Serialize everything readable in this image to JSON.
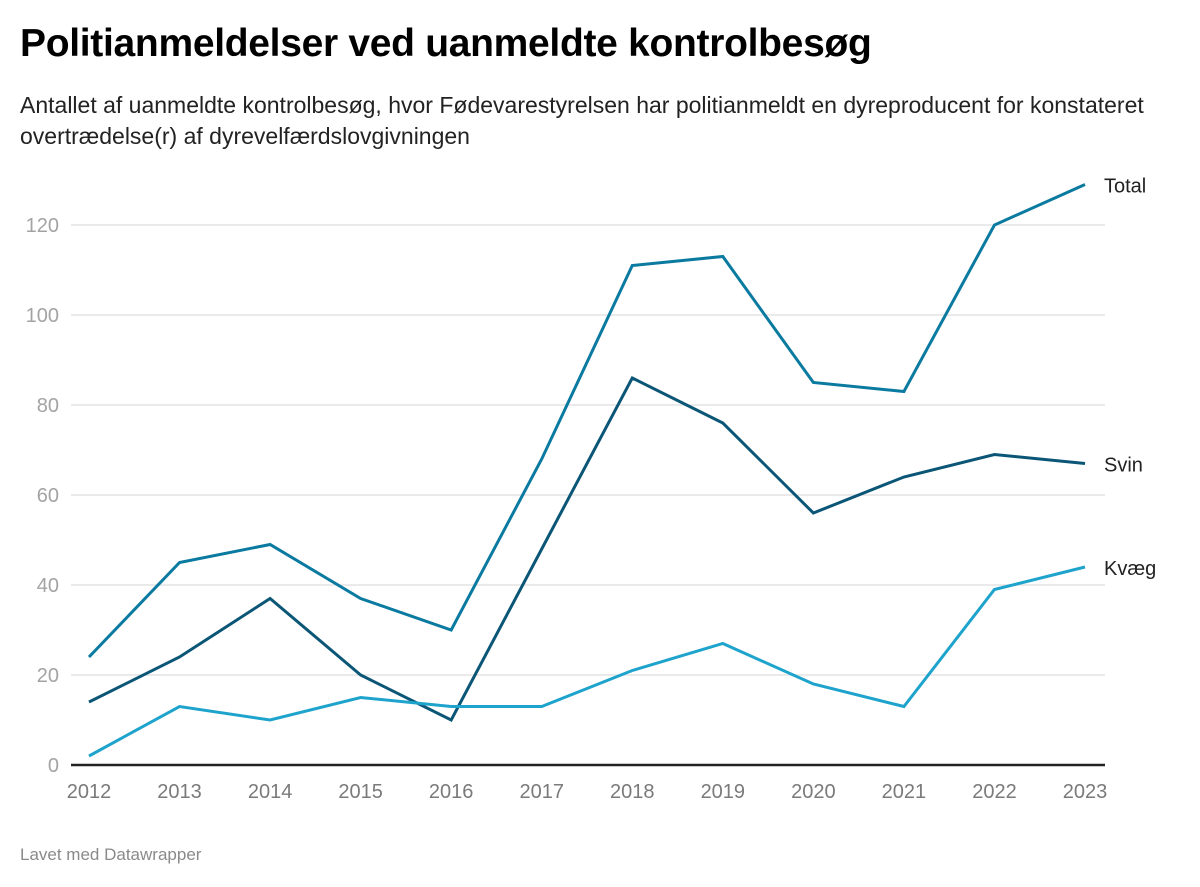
{
  "header": {
    "title": "Politianmeldelser ved uanmeldte kontrolbesøg",
    "subtitle": "Antallet af uanmeldte kontrolbesøg, hvor Fødevarestyrelsen har politianmeldt en dyreproducent for konstateret overtrædelse(r) af dyrevelfærdslovgivningen"
  },
  "footer": {
    "credit": "Lavet med Datawrapper"
  },
  "chart_data": {
    "type": "line",
    "title": "Politianmeldelser ved uanmeldte kontrolbesøg",
    "subtitle": "Antallet af uanmeldte kontrolbesøg, hvor Fødevarestyrelsen har politianmeldt en dyreproducent for konstateret overtrædelse(r) af dyrevelfærdslovgivningen",
    "xlabel": "",
    "ylabel": "",
    "x": [
      "2012",
      "2013",
      "2014",
      "2015",
      "2016",
      "2017",
      "2018",
      "2019",
      "2020",
      "2021",
      "2022",
      "2023"
    ],
    "ylim": [
      0,
      130
    ],
    "yticks": [
      0,
      20,
      40,
      60,
      80,
      100,
      120
    ],
    "grid": true,
    "legend": "inline-right",
    "series": [
      {
        "name": "Total",
        "color": "#0a7aa0",
        "values": [
          24,
          45,
          49,
          37,
          30,
          68,
          111,
          113,
          85,
          83,
          120,
          129
        ]
      },
      {
        "name": "Svin",
        "color": "#0b5676",
        "values": [
          14,
          24,
          37,
          20,
          10,
          48,
          86,
          76,
          56,
          64,
          69,
          67
        ]
      },
      {
        "name": "Kvæg",
        "color": "#1ea3cc",
        "values": [
          2,
          13,
          10,
          15,
          13,
          13,
          21,
          27,
          18,
          13,
          39,
          44
        ]
      }
    ]
  }
}
